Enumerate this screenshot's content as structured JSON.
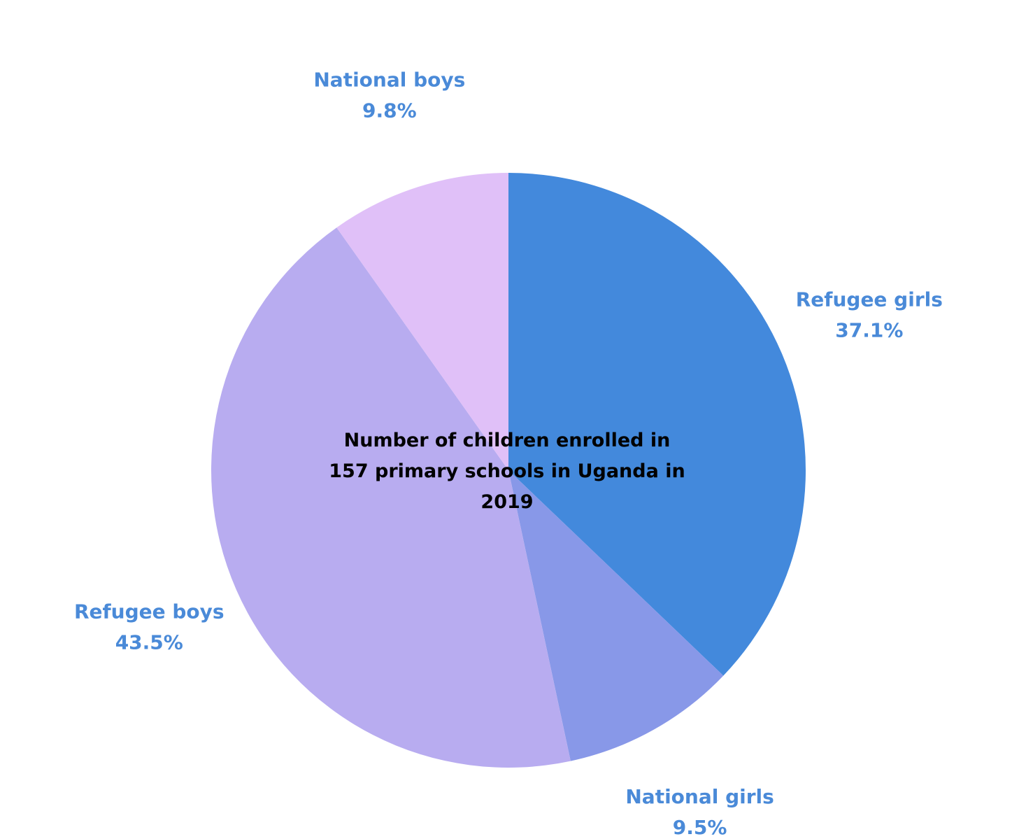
{
  "chart_data": {
    "type": "pie",
    "title": "Number of children enrolled in 157 primary schools in Uganda in 2019",
    "categories": [
      "Refugee girls",
      "National girls",
      "Refugee boys",
      "National boys"
    ],
    "values": [
      37.1,
      9.5,
      43.5,
      9.8
    ],
    "value_labels": [
      "37.1%",
      "9.5%",
      "43.5%",
      "9.8%"
    ],
    "colors": [
      "#4389dc",
      "#8898e8",
      "#b8acf0",
      "#e0c0f8"
    ]
  }
}
